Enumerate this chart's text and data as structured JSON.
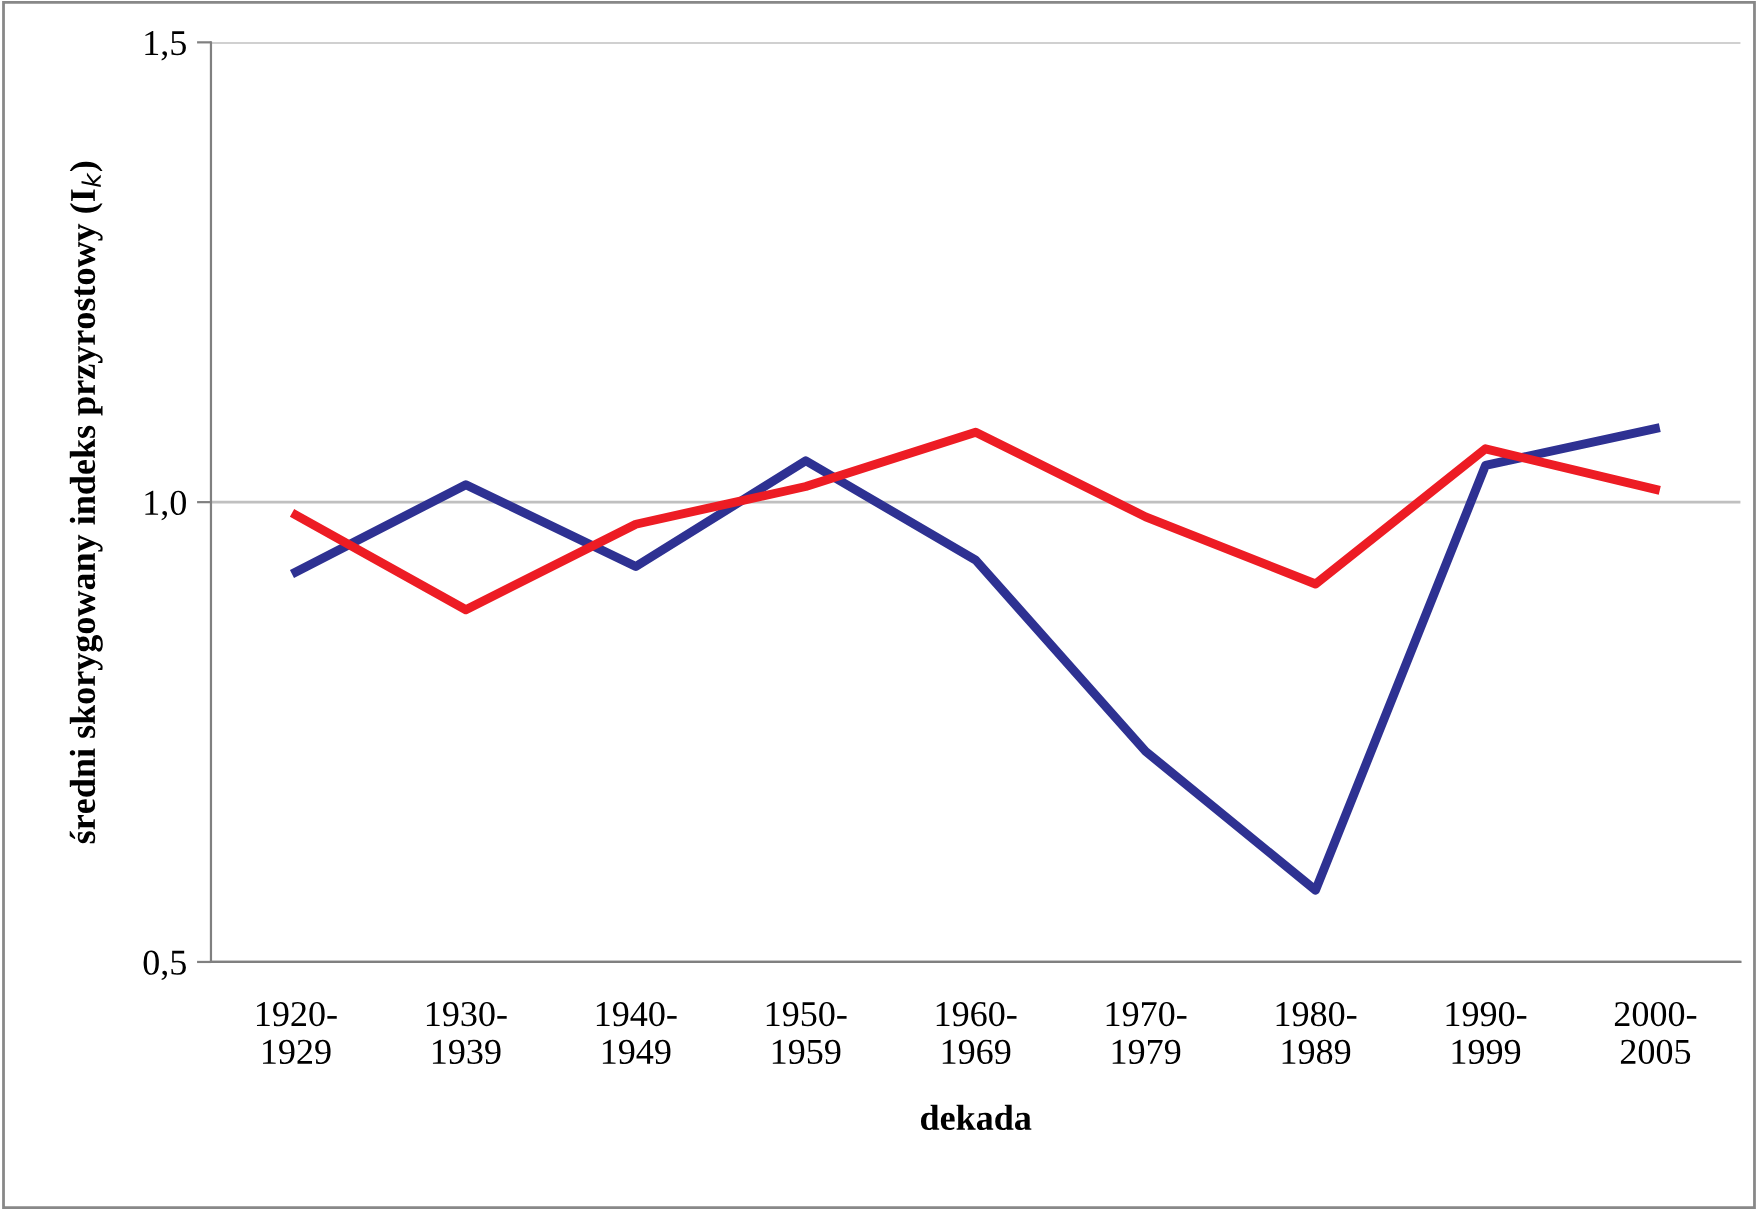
{
  "chart_data": {
    "type": "line",
    "categories": [
      "1920-\n1929",
      "1930-\n1939",
      "1940-\n1949",
      "1950-\n1959",
      "1960-\n1969",
      "1970-\n1979",
      "1980-\n1989",
      "1990-\n1999",
      "2000-\n2005"
    ],
    "series": [
      {
        "color": "#2e3192",
        "values": [
          0.924,
          1.019,
          0.93,
          1.045,
          0.937,
          0.729,
          0.578,
          1.04,
          1.08
        ]
      },
      {
        "color": "#ed1c24",
        "values": [
          0.986,
          0.883,
          0.976,
          1.017,
          1.076,
          0.984,
          0.911,
          1.058,
          1.014
        ]
      }
    ],
    "ylim": [
      0.5,
      1.5
    ],
    "yticks": [
      {
        "value": 0.5,
        "label": "0,5"
      },
      {
        "value": 1.0,
        "label": "1,0"
      },
      {
        "value": 1.5,
        "label": "1,5"
      }
    ],
    "xlabel": "dekada",
    "ylabel": "średni skorygowany indeks przyrostowy (I$_{k}$)",
    "grid": "y",
    "marker": "none",
    "line_style": "solid"
  }
}
